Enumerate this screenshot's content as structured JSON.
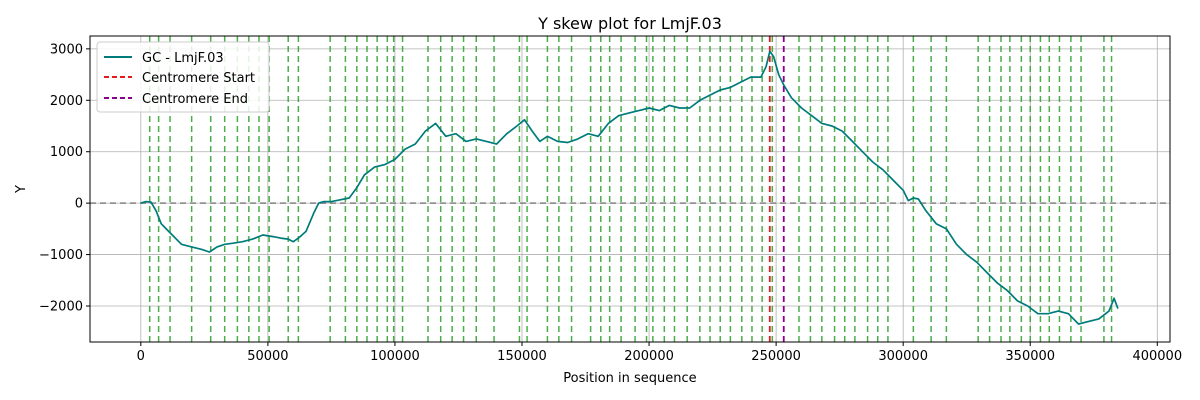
{
  "chart_data": {
    "type": "line",
    "title": "Y skew plot for LmjF.03",
    "xlabel": "Position in sequence",
    "ylabel": "Y",
    "xlim": [
      -20000,
      405000
    ],
    "ylim": [
      -2700,
      3250
    ],
    "xticks": [
      0,
      50000,
      100000,
      150000,
      200000,
      250000,
      300000,
      350000,
      400000
    ],
    "xtick_labels": [
      "0",
      "50000",
      "100000",
      "150000",
      "200000",
      "250000",
      "300000",
      "350000",
      "400000"
    ],
    "yticks": [
      -2000,
      -1000,
      0,
      1000,
      2000,
      3000
    ],
    "ytick_labels": [
      "−2000",
      "−1000",
      "0",
      "1000",
      "2000",
      "3000"
    ],
    "grid": true,
    "legend_position": "top-left",
    "series": [
      {
        "name": "GC - LmjF.03",
        "color": "#007b7b",
        "x": [
          0,
          2000,
          4000,
          6000,
          8000,
          10000,
          13000,
          16000,
          20000,
          24000,
          27000,
          30000,
          33000,
          36000,
          40000,
          44000,
          48000,
          52000,
          55000,
          58000,
          60000,
          62000,
          65000,
          68000,
          70000,
          72000,
          75000,
          78000,
          82000,
          85000,
          88000,
          92000,
          96000,
          100000,
          104000,
          108000,
          112000,
          116000,
          120000,
          124000,
          128000,
          132000,
          136000,
          140000,
          144000,
          148000,
          151000,
          154000,
          157000,
          160000,
          164000,
          168000,
          172000,
          176000,
          180000,
          184000,
          188000,
          192000,
          196000,
          200000,
          204000,
          208000,
          212000,
          216000,
          220000,
          224000,
          228000,
          232000,
          236000,
          240000,
          244000,
          246000,
          247500,
          249000,
          251000,
          253000,
          256000,
          260000,
          264000,
          268000,
          272000,
          276000,
          280000,
          284000,
          288000,
          292000,
          296000,
          300000,
          302000,
          304000,
          306000,
          309000,
          313000,
          317000,
          321000,
          325000,
          329000,
          333000,
          337000,
          341000,
          345000,
          349000,
          353000,
          357000,
          361000,
          365000,
          369000,
          373000,
          377000,
          381000,
          383000,
          384500
        ],
        "y": [
          0,
          30,
          20,
          -150,
          -400,
          -500,
          -650,
          -800,
          -850,
          -900,
          -950,
          -850,
          -800,
          -780,
          -750,
          -700,
          -620,
          -650,
          -680,
          -700,
          -750,
          -680,
          -550,
          -200,
          0,
          30,
          30,
          60,
          100,
          300,
          550,
          700,
          750,
          850,
          1050,
          1150,
          1400,
          1550,
          1300,
          1350,
          1200,
          1250,
          1200,
          1150,
          1350,
          1500,
          1620,
          1400,
          1200,
          1300,
          1200,
          1180,
          1250,
          1350,
          1300,
          1550,
          1700,
          1750,
          1800,
          1850,
          1800,
          1900,
          1850,
          1850,
          2000,
          2100,
          2200,
          2250,
          2350,
          2450,
          2450,
          2650,
          2950,
          2850,
          2500,
          2300,
          2050,
          1850,
          1700,
          1550,
          1500,
          1400,
          1200,
          1000,
          800,
          650,
          450,
          250,
          50,
          100,
          80,
          -150,
          -400,
          -500,
          -800,
          -1000,
          -1150,
          -1350,
          -1550,
          -1700,
          -1900,
          -2000,
          -2150,
          -2150,
          -2100,
          -2150,
          -2350,
          -2300,
          -2250,
          -2100,
          -1850,
          -2050
        ]
      }
    ],
    "segment_lines": {
      "color": "#2ca02c",
      "x": [
        3500,
        7000,
        11500,
        20000,
        27500,
        33000,
        38000,
        42500,
        46500,
        50500,
        58000,
        62000,
        74500,
        80500,
        85000,
        89000,
        93000,
        97000,
        99500,
        103000,
        113000,
        118000,
        122500,
        127000,
        132000,
        139000,
        149000,
        152000,
        160000,
        164500,
        169500,
        177000,
        181000,
        184500,
        189000,
        194500,
        199000,
        201500,
        206000,
        210000,
        215000,
        220000,
        224000,
        228000,
        232000,
        236500,
        240500,
        244500,
        248500,
        253000,
        259000,
        263500,
        268000,
        273000,
        277000,
        281000,
        286000,
        290000,
        294000,
        304000,
        311000,
        317000,
        329500,
        334000,
        338500,
        342000,
        346500,
        350000,
        354000,
        357500,
        361500,
        366000,
        370000,
        379000,
        382000
      ]
    },
    "centromere_start": {
      "name": "Centromere Start",
      "x": 247500,
      "color": "#e41a1c"
    },
    "centromere_end": {
      "name": "Centromere End",
      "x": 253000,
      "color": "#8b008b"
    },
    "zero_line": {
      "y": 0,
      "color": "#808080"
    }
  }
}
